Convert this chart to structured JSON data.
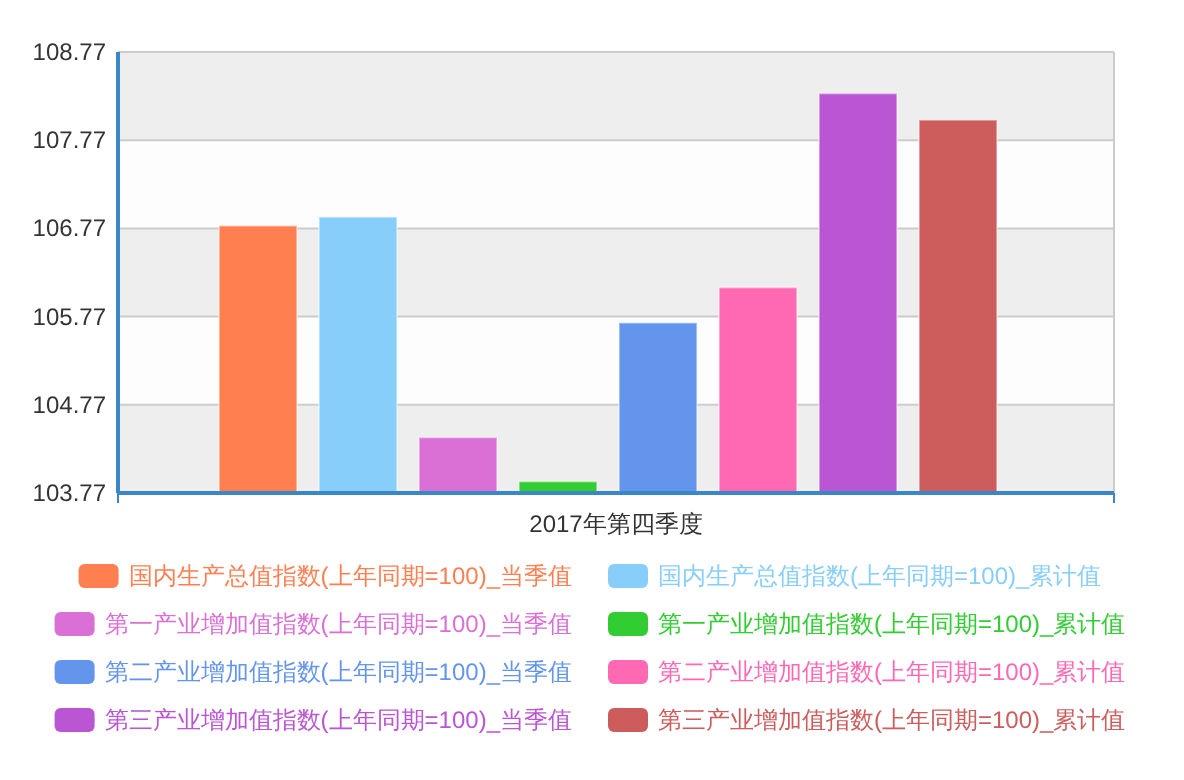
{
  "chart_data": {
    "type": "bar",
    "categories": [
      "2017年第四季度"
    ],
    "series": [
      {
        "name": "国内生产总值指数(上年同期=100)_当季值",
        "color": "#ff7f50",
        "values": [
          106.8
        ]
      },
      {
        "name": "国内生产总值指数(上年同期=100)_累计值",
        "color": "#87cefa",
        "values": [
          106.9
        ]
      },
      {
        "name": "第一产业增加值指数(上年同期=100)_当季值",
        "color": "#da70d6",
        "values": [
          104.4
        ]
      },
      {
        "name": "第一产业增加值指数(上年同期=100)_累计值",
        "color": "#32cd32",
        "values": [
          103.9
        ]
      },
      {
        "name": "第二产业增加值指数(上年同期=100)_当季值",
        "color": "#6495ed",
        "values": [
          105.7
        ]
      },
      {
        "name": "第二产业增加值指数(上年同期=100)_累计值",
        "color": "#ff69b4",
        "values": [
          106.1
        ]
      },
      {
        "name": "第三产业增加值指数(上年同期=100)_当季值",
        "color": "#ba55d3",
        "values": [
          108.3
        ]
      },
      {
        "name": "第三产业增加值指数(上年同期=100)_累计值",
        "color": "#cd5c5c",
        "values": [
          108.0
        ]
      }
    ],
    "ylim": [
      103.77,
      108.77
    ],
    "yticks": [
      103.77,
      104.77,
      105.77,
      106.77,
      107.77,
      108.77
    ],
    "grid": "y",
    "legend": "bottom"
  }
}
